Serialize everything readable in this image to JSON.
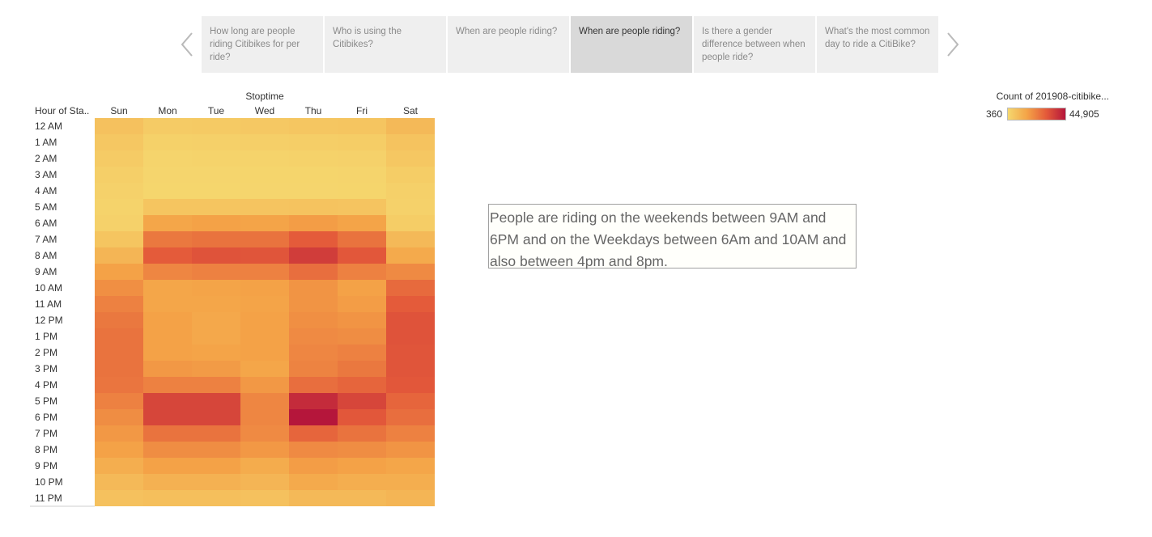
{
  "story": {
    "points": [
      "How long are people riding Citibikes for per ride?",
      "Who is using the Citibikes?",
      "When are people riding?",
      "When are people riding?",
      "Is there a gender difference between when people ride?",
      "What's the most common day to ride a CitiBike?"
    ],
    "active_index": 3
  },
  "annotation": {
    "text": "People are riding on the weekends between 9AM and 6PM and on the Weekdays between 6Am and 10AM and also between 4pm and 8pm."
  },
  "legend": {
    "title": "Count of 201908-citibike...",
    "min_label": "360",
    "max_label": "44,905"
  },
  "colors": {
    "low": "#f5d76e",
    "mid": "#f4a347",
    "high": "#e45a3a",
    "max": "#b5163b"
  },
  "chart_data": {
    "type": "heatmap",
    "title": "Stoptime",
    "row_header": "Hour of Sta..",
    "columns": [
      "Sun",
      "Mon",
      "Tue",
      "Wed",
      "Thu",
      "Fri",
      "Sat"
    ],
    "rows": [
      "12 AM",
      "1 AM",
      "2 AM",
      "3 AM",
      "4 AM",
      "5 AM",
      "6 AM",
      "7 AM",
      "8 AM",
      "9 AM",
      "10 AM",
      "11 AM",
      "12 PM",
      "1 PM",
      "2 PM",
      "3 PM",
      "4 PM",
      "5 PM",
      "6 PM",
      "7 PM",
      "8 PM",
      "9 PM",
      "10 PM",
      "11 PM"
    ],
    "value_range": [
      360,
      44905
    ],
    "values": [
      [
        6000,
        3500,
        3800,
        4200,
        4700,
        5000,
        8000
      ],
      [
        4500,
        2000,
        2200,
        2400,
        2700,
        3000,
        5500
      ],
      [
        3500,
        1200,
        1300,
        1400,
        1600,
        1800,
        4500
      ],
      [
        2500,
        800,
        800,
        900,
        1000,
        1100,
        3000
      ],
      [
        1800,
        700,
        700,
        800,
        800,
        900,
        2200
      ],
      [
        1500,
        5000,
        5000,
        5200,
        5500,
        5200,
        1800
      ],
      [
        1800,
        13000,
        14000,
        13500,
        15000,
        13500,
        3000
      ],
      [
        5000,
        23000,
        24000,
        24000,
        29000,
        24000,
        8000
      ],
      [
        9000,
        29000,
        31000,
        30500,
        36000,
        30000,
        12000
      ],
      [
        14000,
        20000,
        21000,
        21000,
        25000,
        21000,
        19000
      ],
      [
        18000,
        13000,
        13500,
        14000,
        17000,
        14000,
        26000
      ],
      [
        21000,
        13000,
        13000,
        13500,
        17000,
        15000,
        29000
      ],
      [
        23000,
        14000,
        12500,
        14000,
        18000,
        17000,
        31000
      ],
      [
        24000,
        14000,
        12500,
        14000,
        19000,
        18500,
        31000
      ],
      [
        24000,
        14000,
        13500,
        14000,
        20000,
        21000,
        30500
      ],
      [
        24000,
        16000,
        15500,
        13000,
        20500,
        23000,
        30500
      ],
      [
        23500,
        21000,
        21000,
        16000,
        25000,
        27000,
        30000
      ],
      [
        21000,
        34000,
        34000,
        20000,
        40000,
        34000,
        27000
      ],
      [
        18500,
        34000,
        34000,
        20000,
        44905,
        30000,
        25000
      ],
      [
        16000,
        24000,
        24000,
        19000,
        27000,
        24000,
        21000
      ],
      [
        14000,
        18500,
        18500,
        16000,
        19000,
        18500,
        17000
      ],
      [
        11000,
        14000,
        14000,
        11500,
        15000,
        14000,
        13000
      ],
      [
        8000,
        10000,
        10000,
        9000,
        12000,
        11000,
        11000
      ],
      [
        6000,
        6500,
        6500,
        6000,
        8000,
        8000,
        9000
      ]
    ]
  }
}
